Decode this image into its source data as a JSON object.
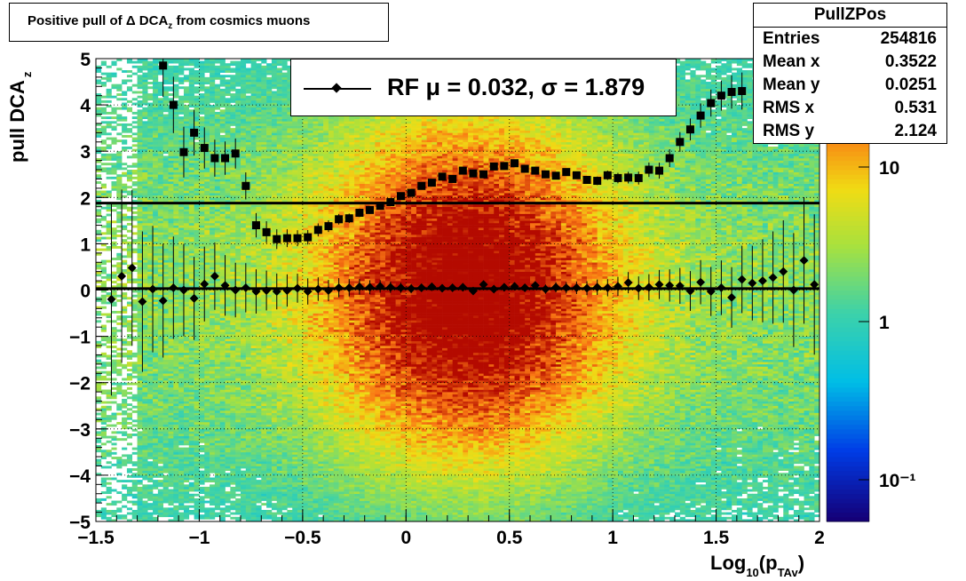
{
  "title": "Positive pull of Δ DCA_z from cosmics muons",
  "stats": {
    "name": "PullZPos",
    "rows": [
      {
        "label": "Entries",
        "value": "254816"
      },
      {
        "label": "Mean x",
        "value": "0.3522"
      },
      {
        "label": "Mean y",
        "value": "0.0251"
      },
      {
        "label": "RMS x",
        "value": "0.531"
      },
      {
        "label": "RMS y",
        "value": "2.124"
      }
    ]
  },
  "legend": {
    "text": "RF μ =  0.032, σ =   1.879"
  },
  "colorbar": {
    "labels": [
      "10",
      "1",
      "10⁻¹"
    ]
  },
  "chart_data": {
    "type": "heatmap",
    "title": "Positive pull of Δ DCA_z from cosmics muons",
    "xlabel": "Log10(pTAv)",
    "ylabel": "pull DCAz",
    "xlim": [
      -1.5,
      2
    ],
    "ylim": [
      -5,
      5
    ],
    "xticks": [
      "−1.5",
      "−1",
      "−0.5",
      "0",
      "0.5",
      "1",
      "1.5",
      "2"
    ],
    "yticks": [
      "−5",
      "−4",
      "−3",
      "−2",
      "−1",
      "0",
      "1",
      "2",
      "3",
      "4",
      "5"
    ],
    "colorbar_scale": "log",
    "colorbar_ticks": [
      "10⁻¹",
      "1",
      "10"
    ],
    "reference_lines": [
      {
        "name": "sigma",
        "y": 1.879
      },
      {
        "name": "mu",
        "y": 0.032
      }
    ],
    "series": [
      {
        "name": "RF",
        "marker": "diamond",
        "x": [
          -1.425,
          -1.375,
          -1.325,
          -1.275,
          -1.225,
          -1.175,
          -1.125,
          -1.075,
          -1.025,
          -0.975,
          -0.925,
          -0.875,
          -0.825,
          -0.775,
          -0.725,
          -0.675,
          -0.625,
          -0.575,
          -0.525,
          -0.475,
          -0.425,
          -0.375,
          -0.325,
          -0.275,
          -0.225,
          -0.175,
          -0.125,
          -0.075,
          -0.025,
          0.025,
          0.075,
          0.125,
          0.175,
          0.225,
          0.275,
          0.325,
          0.375,
          0.425,
          0.475,
          0.525,
          0.575,
          0.625,
          0.675,
          0.725,
          0.775,
          0.825,
          0.875,
          0.925,
          0.975,
          1.025,
          1.075,
          1.125,
          1.175,
          1.225,
          1.275,
          1.325,
          1.375,
          1.425,
          1.475,
          1.525,
          1.575,
          1.625,
          1.675,
          1.725,
          1.775,
          1.825,
          1.875,
          1.925,
          1.975
        ],
        "y": [
          -0.2,
          0.3,
          0.48,
          -0.25,
          0.02,
          -0.23,
          0.05,
          0.0,
          -0.18,
          0.13,
          0.3,
          0.1,
          0.0,
          0.05,
          -0.03,
          -0.01,
          -0.03,
          -0.01,
          0.04,
          -0.03,
          0.02,
          -0.01,
          0.05,
          0.05,
          0.07,
          0.06,
          0.08,
          0.06,
          0.05,
          0.03,
          0.05,
          0.07,
          0.04,
          0.05,
          0.06,
          -0.02,
          0.12,
          0.02,
          0.06,
          0.08,
          0.05,
          0.1,
          0.02,
          0.06,
          0.05,
          0.05,
          0.04,
          0.06,
          0.05,
          0.08,
          0.16,
          0.04,
          0.06,
          0.12,
          0.1,
          0.09,
          -0.02,
          0.17,
          -0.03,
          0.05,
          -0.16,
          0.23,
          0.15,
          0.2,
          0.27,
          0.4,
          0.0,
          0.64,
          0.12
        ]
      },
      {
        "name": "sigma",
        "marker": "square",
        "x": [
          -1.175,
          -1.125,
          -1.075,
          -1.025,
          -0.975,
          -0.925,
          -0.875,
          -0.825,
          -0.775,
          -0.725,
          -0.675,
          -0.625,
          -0.575,
          -0.525,
          -0.475,
          -0.425,
          -0.375,
          -0.325,
          -0.275,
          -0.225,
          -0.175,
          -0.125,
          -0.075,
          -0.025,
          0.025,
          0.075,
          0.125,
          0.175,
          0.225,
          0.275,
          0.325,
          0.375,
          0.425,
          0.475,
          0.525,
          0.575,
          0.625,
          0.675,
          0.725,
          0.775,
          0.825,
          0.875,
          0.925,
          0.975,
          1.025,
          1.075,
          1.125,
          1.175,
          1.225,
          1.275,
          1.325,
          1.375,
          1.425,
          1.475,
          1.525,
          1.575,
          1.625
        ],
        "y": [
          4.85,
          4.0,
          2.98,
          3.4,
          3.07,
          2.85,
          2.85,
          2.95,
          2.25,
          1.4,
          1.25,
          1.1,
          1.12,
          1.12,
          1.14,
          1.3,
          1.38,
          1.53,
          1.55,
          1.67,
          1.73,
          1.82,
          1.9,
          2.03,
          2.1,
          2.25,
          2.32,
          2.45,
          2.4,
          2.58,
          2.52,
          2.5,
          2.67,
          2.68,
          2.74,
          2.62,
          2.58,
          2.5,
          2.47,
          2.55,
          2.48,
          2.38,
          2.36,
          2.48,
          2.42,
          2.43,
          2.42,
          2.6,
          2.58,
          2.85,
          3.2,
          3.47,
          3.77,
          4.04,
          4.2,
          4.28,
          4.3
        ]
      }
    ]
  }
}
